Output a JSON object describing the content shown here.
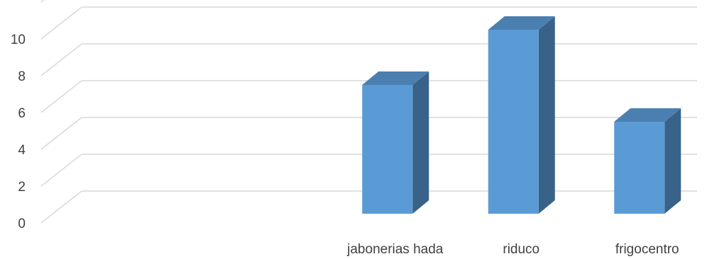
{
  "chart_data": {
    "type": "bar",
    "style": "3d-column",
    "categories": [
      "",
      "",
      "jabonerias hada",
      "riduco",
      "frigocentro"
    ],
    "values": [
      null,
      null,
      7,
      10,
      5
    ],
    "ylim": [
      0,
      12
    ],
    "yticks": [
      0,
      2,
      4,
      6,
      8,
      10
    ],
    "title": "",
    "xlabel": "",
    "ylabel": "",
    "grid": true,
    "colors": {
      "bar_front": "#5B9BD5",
      "bar_top": "#4A7FB0",
      "bar_side": "#396289",
      "grid": "#D9D9D9",
      "text": "#404040"
    }
  }
}
